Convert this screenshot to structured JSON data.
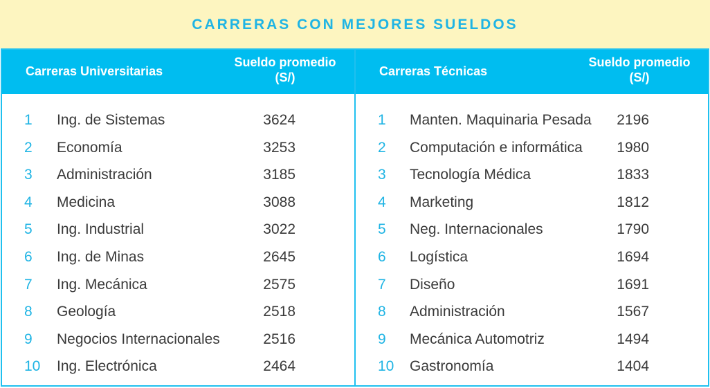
{
  "title": "CARRERAS CON MEJORES SUELDOS",
  "left": {
    "header": "Carreras Universitarias",
    "salary_header_line1": "Sueldo promedio",
    "salary_header_line2": "(S/)",
    "rows": [
      {
        "num": "1",
        "name": "Ing. de Sistemas",
        "salary": "3624"
      },
      {
        "num": "2",
        "name": "Economía",
        "salary": "3253"
      },
      {
        "num": "3",
        "name": "Administración",
        "salary": "3185"
      },
      {
        "num": "4",
        "name": "Medicina",
        "salary": "3088"
      },
      {
        "num": "5",
        "name": "Ing. Industrial",
        "salary": "3022"
      },
      {
        "num": "6",
        "name": "Ing. de Minas",
        "salary": "2645"
      },
      {
        "num": "7",
        "name": "Ing. Mecánica",
        "salary": "2575"
      },
      {
        "num": "8",
        "name": "Geología",
        "salary": "2518"
      },
      {
        "num": "9",
        "name": "Negocios Internacionales",
        "salary": "2516"
      },
      {
        "num": "10",
        "name": "Ing. Electrónica",
        "salary": "2464"
      }
    ]
  },
  "right": {
    "header": "Carreras Técnicas",
    "salary_header_line1": "Sueldo promedio",
    "salary_header_line2": "(S/)",
    "rows": [
      {
        "num": "1",
        "name": "Manten. Maquinaria Pesada",
        "salary": "2196"
      },
      {
        "num": "2",
        "name": "Computación e informática",
        "salary": "1980"
      },
      {
        "num": "3",
        "name": "Tecnología Médica",
        "salary": "1833"
      },
      {
        "num": "4",
        "name": "Marketing",
        "salary": "1812"
      },
      {
        "num": "5",
        "name": "Neg. Internacionales",
        "salary": "1790"
      },
      {
        "num": "6",
        "name": "Logística",
        "salary": "1694"
      },
      {
        "num": "7",
        "name": "Diseño",
        "salary": "1691"
      },
      {
        "num": "8",
        "name": "Administración",
        "salary": "1567"
      },
      {
        "num": "9",
        "name": "Mecánica Automotriz",
        "salary": "1494"
      },
      {
        "num": "10",
        "name": "Gastronomía",
        "salary": "1404"
      }
    ]
  },
  "colors": {
    "title_bg": "#fdf5c0",
    "accent": "#1fb4e4",
    "header_bg": "#00bdf0",
    "text": "#3a3a3a"
  }
}
